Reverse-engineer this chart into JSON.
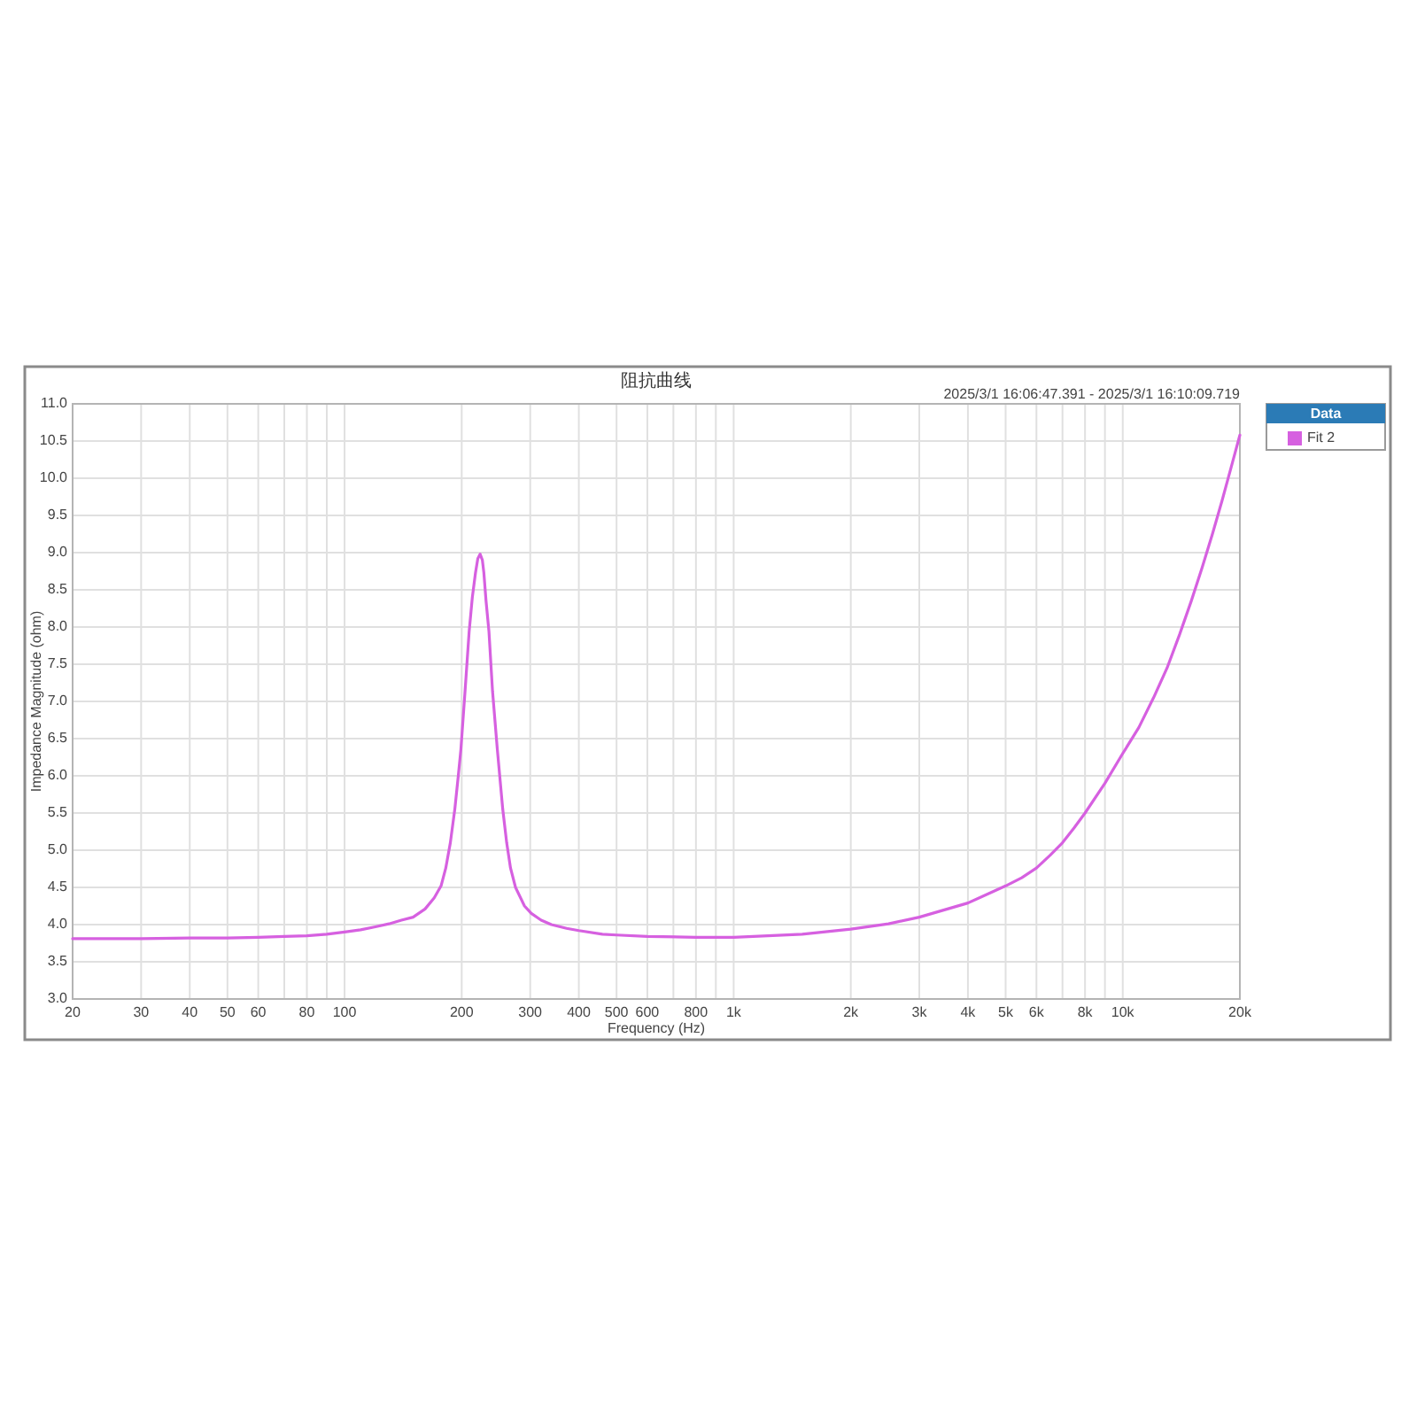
{
  "chart_data": {
    "type": "line",
    "title": "阻抗曲线",
    "xlabel": "Frequency (Hz)",
    "ylabel": "Impedance Magnitude (ohm)",
    "legend_title": "Data",
    "annotations": [
      "2025/3/1 16:06:47.391 - 2025/3/1 16:10:09.719"
    ],
    "log": "x",
    "grid": true,
    "legend": "right",
    "line_style": "solid",
    "xlim": [
      20,
      20000
    ],
    "ylim": [
      3,
      11
    ],
    "xticks": [
      20,
      30,
      40,
      50,
      60,
      {
        "value": 70,
        "label": null
      },
      80,
      {
        "value": 90,
        "label": null
      },
      100,
      200,
      300,
      400,
      500,
      600,
      {
        "value": 700,
        "label": null
      },
      800,
      {
        "value": 900,
        "label": null
      },
      {
        "value": 1000,
        "label": "1k"
      },
      {
        "value": 2000,
        "label": "2k"
      },
      {
        "value": 3000,
        "label": "3k"
      },
      {
        "value": 4000,
        "label": "4k"
      },
      {
        "value": 5000,
        "label": "5k"
      },
      {
        "value": 6000,
        "label": "6k"
      },
      {
        "value": 7000,
        "label": null
      },
      {
        "value": 8000,
        "label": "8k"
      },
      {
        "value": 9000,
        "label": null
      },
      {
        "value": 10000,
        "label": "10k"
      },
      {
        "value": 20000,
        "label": "20k"
      }
    ],
    "yticks": [
      {
        "value": 3,
        "label": "3.0"
      },
      3.5,
      {
        "value": 4,
        "label": "4.0"
      },
      4.5,
      {
        "value": 5,
        "label": "5.0"
      },
      5.5,
      {
        "value": 6,
        "label": "6.0"
      },
      6.5,
      {
        "value": 7,
        "label": "7.0"
      },
      7.5,
      {
        "value": 8,
        "label": "8.0"
      },
      8.5,
      {
        "value": 9,
        "label": "9.0"
      },
      9.5,
      {
        "value": 10,
        "label": "10.0"
      },
      10.5,
      {
        "value": 11,
        "label": "11.0"
      }
    ],
    "x": [
      20,
      30,
      40,
      50,
      60,
      70,
      80,
      90,
      100,
      110,
      120,
      130,
      140,
      150,
      161,
      170,
      177,
      182,
      187,
      192,
      196,
      199,
      204,
      209,
      213,
      217,
      220,
      223,
      226,
      228,
      231,
      235,
      240,
      247,
      255,
      261,
      267,
      275,
      290,
      302,
      320,
      340,
      372,
      400,
      460,
      500,
      600,
      800,
      1000,
      1500,
      2000,
      2500,
      3000,
      4000,
      5000,
      5500,
      6000,
      6500,
      7000,
      7500,
      8000,
      9000,
      10000,
      11000,
      12000,
      13000,
      14000,
      15000,
      16000,
      17000,
      18000,
      19000,
      20000
    ],
    "series": [
      {
        "name": "Fit 2",
        "color": "#d660e0",
        "values": [
          3.81,
          3.81,
          3.82,
          3.82,
          3.83,
          3.84,
          3.85,
          3.87,
          3.9,
          3.93,
          3.97,
          4.01,
          4.06,
          4.1,
          4.21,
          4.36,
          4.52,
          4.76,
          5.1,
          5.55,
          6.0,
          6.35,
          7.14,
          7.94,
          8.4,
          8.73,
          8.92,
          8.98,
          8.9,
          8.73,
          8.35,
          7.94,
          7.14,
          6.35,
          5.55,
          5.1,
          4.76,
          4.5,
          4.25,
          4.15,
          4.06,
          4.0,
          3.95,
          3.92,
          3.87,
          3.86,
          3.84,
          3.83,
          3.83,
          3.87,
          3.94,
          4.01,
          4.1,
          4.29,
          4.52,
          4.63,
          4.76,
          4.93,
          5.1,
          5.3,
          5.5,
          5.9,
          6.3,
          6.65,
          7.05,
          7.45,
          7.9,
          8.35,
          8.8,
          9.25,
          9.7,
          10.15,
          10.58
        ]
      }
    ]
  }
}
